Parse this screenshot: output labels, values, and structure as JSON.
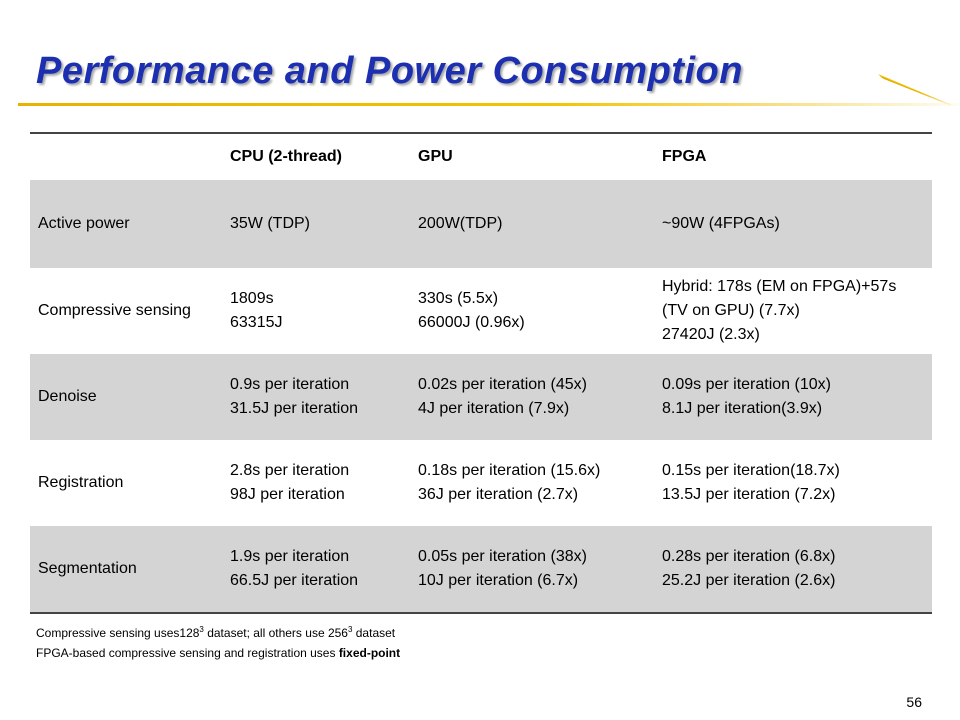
{
  "slide": {
    "title": "Performance and Power Consumption",
    "page_number": "56"
  },
  "table": {
    "headers": [
      "",
      "CPU (2-thread)",
      "GPU",
      "FPGA"
    ],
    "rows": [
      {
        "label": "Active power",
        "cpu": [
          "35W (TDP)"
        ],
        "gpu": [
          "200W(TDP)"
        ],
        "fpga": [
          "~90W (4FPGAs)"
        ]
      },
      {
        "label": "Compressive sensing",
        "cpu": [
          "1809s",
          "63315J"
        ],
        "gpu": [
          "330s (5.5x)",
          "66000J (0.96x)"
        ],
        "fpga": [
          "Hybrid: 178s (EM on FPGA)+57s",
          "(TV on GPU) (7.7x)",
          "27420J (2.3x)"
        ]
      },
      {
        "label": "Denoise",
        "cpu": [
          "0.9s per iteration",
          "31.5J per iteration"
        ],
        "gpu": [
          "0.02s per iteration (45x)",
          "4J per iteration (7.9x)"
        ],
        "fpga": [
          "0.09s per iteration (10x)",
          "8.1J per iteration(3.9x)"
        ]
      },
      {
        "label": "Registration",
        "cpu": [
          "2.8s per iteration",
          "98J per iteration"
        ],
        "gpu": [
          "0.18s per iteration (15.6x)",
          "36J per iteration (2.7x)"
        ],
        "fpga": [
          "0.15s per iteration(18.7x)",
          "13.5J per iteration (7.2x)"
        ]
      },
      {
        "label": "Segmentation",
        "cpu": [
          "1.9s per iteration",
          "66.5J per iteration"
        ],
        "gpu": [
          "0.05s per iteration (38x)",
          "10J per iteration (6.7x)"
        ],
        "fpga": [
          "0.28s per iteration (6.8x)",
          "25.2J per iteration (2.6x)"
        ]
      }
    ]
  },
  "notes": {
    "line1_prefix": "Compressive sensing uses128",
    "line1_sup1": "3",
    "line1_mid": " dataset; all others use 256",
    "line1_sup2": "3",
    "line1_suffix": " dataset",
    "line2_prefix": "FPGA-based compressive sensing and registration uses ",
    "line2_bold": "fixed-point"
  },
  "colors": {
    "title": "#1c2fb0",
    "accent_rule": "#f2c400",
    "alt_row": "#d4d4d4"
  }
}
